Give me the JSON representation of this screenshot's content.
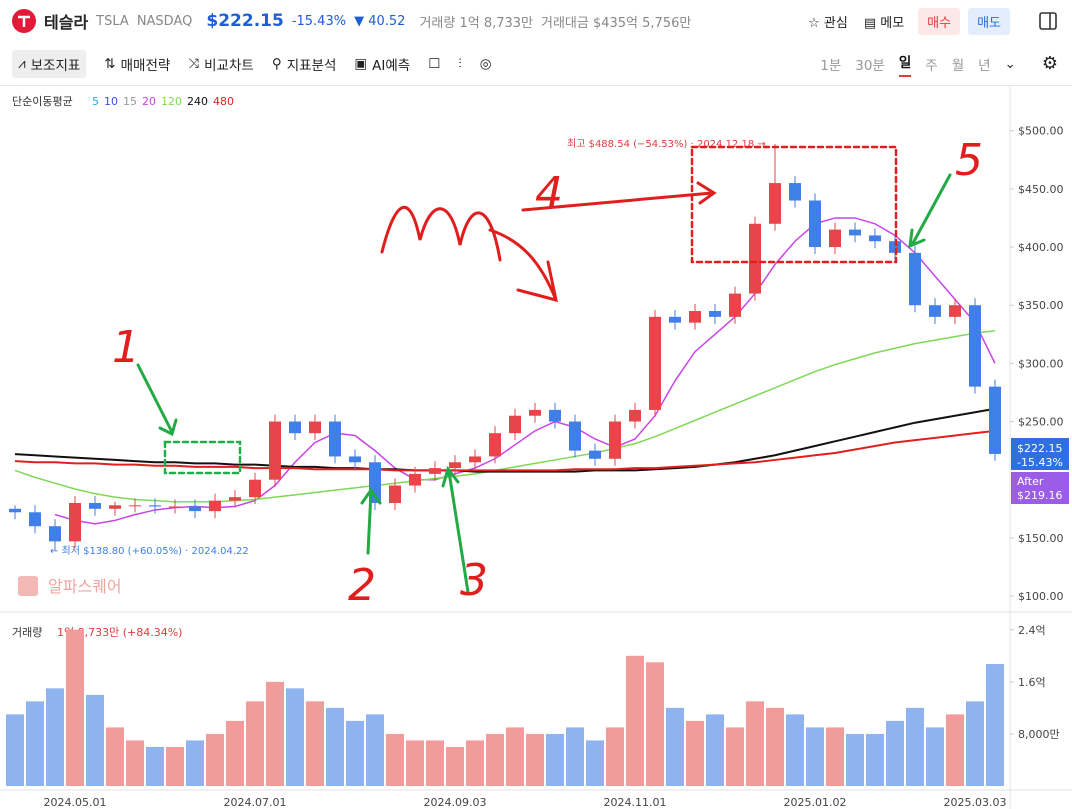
{
  "header": {
    "name": "테슬라",
    "ticker": "TSLA",
    "exchange": "NASDAQ",
    "price": "$222.15",
    "change_pct": "-15.43%",
    "change": "▼ 40.52",
    "volume": "거래량 1억 8,733만",
    "amount": "거래대금 $435억 5,756만",
    "watch": "관심",
    "memo": "메모",
    "buy": "매수",
    "sell": "매도"
  },
  "toolbar": {
    "items": [
      "보조지표",
      "매매전략",
      "비교차트",
      "지표분석",
      "AI예측"
    ],
    "periods": [
      "1분",
      "30분",
      "일",
      "주",
      "월",
      "년"
    ]
  },
  "chart_data": {
    "type": "candlestick",
    "ma_title": "단순이동평균",
    "legend": [
      {
        "name": "5",
        "color": "#29a8e0"
      },
      {
        "name": "10",
        "color": "#3a50e0"
      },
      {
        "name": "15",
        "color": "#9a9a9a"
      },
      {
        "name": "20",
        "color": "#c845e8"
      },
      {
        "name": "120",
        "color": "#7ed957"
      },
      {
        "name": "240",
        "color": "#111111"
      },
      {
        "name": "480",
        "color": "#e02020"
      }
    ],
    "categories": [
      null,
      null,
      null,
      "2024.05.01",
      null,
      null,
      null,
      null,
      null,
      null,
      null,
      null,
      "2024.07.01",
      null,
      null,
      null,
      null,
      null,
      null,
      null,
      null,
      null,
      "2024.09.03",
      null,
      null,
      null,
      null,
      null,
      null,
      null,
      null,
      "2024.11.01",
      null,
      null,
      null,
      null,
      null,
      null,
      null,
      null,
      "2025.01.02",
      null,
      null,
      null,
      null,
      null,
      null,
      null,
      "2025.03.03",
      null
    ],
    "open": [
      175,
      172,
      160,
      147,
      180,
      175,
      178,
      178,
      177,
      177,
      173,
      182,
      185,
      200,
      250,
      240,
      250,
      220,
      215,
      180,
      195,
      205,
      210,
      215,
      220,
      240,
      255,
      260,
      250,
      225,
      218,
      250,
      260,
      340,
      335,
      345,
      340,
      360,
      420,
      455,
      440,
      400,
      415,
      410,
      405,
      395,
      350,
      340,
      350,
      280
    ],
    "high": [
      178,
      178,
      166,
      186,
      186,
      181,
      184,
      184,
      183,
      183,
      188,
      191,
      206,
      256,
      256,
      256,
      256,
      226,
      221,
      201,
      211,
      216,
      221,
      226,
      246,
      261,
      266,
      266,
      256,
      231,
      256,
      266,
      346,
      346,
      351,
      351,
      366,
      426,
      488.54,
      461,
      446,
      421,
      421,
      416,
      411,
      401,
      356,
      356,
      356,
      286
    ],
    "low": [
      166,
      154,
      138.8,
      141,
      169,
      169,
      172,
      171,
      171,
      167,
      167,
      176,
      179,
      194,
      234,
      234,
      214,
      209,
      174,
      174,
      189,
      199,
      204,
      209,
      214,
      234,
      249,
      244,
      219,
      212,
      212,
      244,
      254,
      329,
      329,
      334,
      334,
      354,
      414,
      434,
      394,
      394,
      404,
      399,
      389,
      344,
      334,
      334,
      274,
      216.15
    ],
    "close": [
      172,
      160,
      147,
      180,
      175,
      178,
      178,
      177,
      177,
      173,
      182,
      185,
      200,
      250,
      240,
      250,
      220,
      215,
      180,
      195,
      205,
      210,
      215,
      220,
      240,
      255,
      260,
      250,
      225,
      218,
      250,
      260,
      340,
      335,
      345,
      340,
      360,
      420,
      455,
      440,
      400,
      415,
      410,
      405,
      395,
      350,
      340,
      350,
      280,
      222.15
    ],
    "up_color": "#e8454a",
    "down_color": "#3f7fe6",
    "series": [
      {
        "color": "#c845e8",
        "values": [
          null,
          null,
          170,
          165,
          162,
          165,
          170,
          174,
          176,
          177,
          176,
          177,
          182,
          195,
          215,
          232,
          240,
          238,
          225,
          210,
          200,
          200,
          205,
          210,
          218,
          230,
          242,
          250,
          245,
          235,
          228,
          235,
          255,
          285,
          310,
          325,
          340,
          360,
          385,
          405,
          420,
          425,
          425,
          420,
          410,
          395,
          375,
          355,
          335,
          300
        ]
      },
      {
        "color": "#7ed957",
        "values": [
          208,
          202,
          197,
          192,
          188,
          185,
          183,
          182,
          181,
          181,
          181,
          182,
          183,
          185,
          187,
          189,
          191,
          193,
          195,
          197,
          199,
          201,
          203,
          205,
          208,
          211,
          214,
          217,
          220,
          223,
          227,
          231,
          237,
          244,
          251,
          258,
          265,
          272,
          279,
          286,
          293,
          299,
          304,
          309,
          313,
          317,
          320,
          323,
          326,
          328
        ]
      },
      {
        "color": "#111111",
        "values": [
          222,
          221,
          220,
          219,
          218,
          217,
          216,
          215,
          215,
          214,
          214,
          213,
          213,
          212,
          211,
          211,
          210,
          210,
          209,
          209,
          208,
          208,
          208,
          207,
          207,
          207,
          207,
          207,
          207,
          208,
          208,
          208,
          209,
          210,
          211,
          213,
          215,
          218,
          221,
          225,
          229,
          233,
          237,
          241,
          245,
          249,
          252,
          255,
          258,
          261
        ]
      },
      {
        "color": "#e02020",
        "values": [
          216,
          215,
          215,
          214,
          214,
          213,
          213,
          212,
          212,
          211,
          211,
          211,
          210,
          210,
          210,
          209,
          209,
          209,
          209,
          208,
          208,
          208,
          208,
          208,
          208,
          208,
          208,
          208,
          209,
          209,
          209,
          210,
          210,
          211,
          212,
          213,
          214,
          215,
          217,
          219,
          221,
          223,
          226,
          229,
          232,
          234,
          236,
          238,
          240,
          242
        ]
      }
    ],
    "ylim": [
      88,
      535
    ],
    "yticks": [
      {
        "value": 100,
        "label": "$100.00"
      },
      {
        "value": 150,
        "label": "$150.00"
      },
      {
        "value": 250,
        "label": "$250.00"
      },
      {
        "value": 300,
        "label": "$300.00"
      },
      {
        "value": 350,
        "label": "$350.00"
      },
      {
        "value": 400,
        "label": "$400.00"
      },
      {
        "value": 450,
        "label": "$450.00"
      },
      {
        "value": 500,
        "label": "$500.00"
      }
    ],
    "high_label": "최고 $488.54 (−54.53%) · 2024.12.18 →",
    "low_label": "← 최저 $138.80 (+60.05%) · 2024.04.22",
    "price_tag": [
      "$222.15",
      "-15.43%"
    ],
    "after_tag": [
      "After",
      "$219.16"
    ],
    "watermark": "알파스퀘어",
    "annotations": [
      "1",
      "2",
      "3",
      "4",
      "5"
    ],
    "volume": {
      "title": "거래량",
      "label": "1억 8,733만 (+84.34%)",
      "up_color": "#f29b9b",
      "down_color": "#8fb3ee",
      "values": [
        1.1,
        1.3,
        1.5,
        2.4,
        1.4,
        0.9,
        0.7,
        0.6,
        0.6,
        0.7,
        0.8,
        1.0,
        1.3,
        1.6,
        1.5,
        1.3,
        1.2,
        1.0,
        1.1,
        0.8,
        0.7,
        0.7,
        0.6,
        0.7,
        0.8,
        0.9,
        0.8,
        0.8,
        0.9,
        0.7,
        0.9,
        2.0,
        1.9,
        1.2,
        1.0,
        1.1,
        0.9,
        1.3,
        1.2,
        1.1,
        0.9,
        0.9,
        0.8,
        0.8,
        1.0,
        1.2,
        0.9,
        1.1,
        1.3,
        1.8733
      ],
      "ylim": [
        0,
        2.55
      ],
      "yticks": [
        {
          "value": 0.8,
          "label": "8,000만"
        },
        {
          "value": 1.6,
          "label": "1.6억"
        },
        {
          "value": 2.4,
          "label": "2.4억"
        }
      ]
    }
  }
}
